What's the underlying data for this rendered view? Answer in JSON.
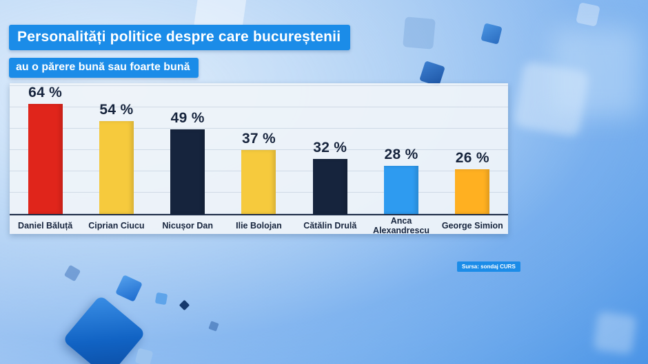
{
  "header": {
    "title_line1": "Personalități politice despre care bucureștenii",
    "title_line2": "au o părere bună sau foarte bună"
  },
  "source": {
    "label": "Sursa: sondaj CURS"
  },
  "colors": {
    "badge_blue": "#1b8ce8",
    "panel_bg": "#eef3f9",
    "text_dark": "#16243d"
  },
  "chart_data": {
    "type": "bar",
    "title": "Personalități politice despre care bucureștenii au o părere bună sau foarte bună",
    "categories": [
      "Daniel Băluță",
      "Ciprian Ciucu",
      "Nicușor Dan",
      "Ilie Bolojan",
      "Cătălin Drulă",
      "Anca Alexandrescu",
      "George Simion"
    ],
    "values": [
      64,
      54,
      49,
      37,
      32,
      28,
      26
    ],
    "value_suffix": " %",
    "bar_colors": [
      "#e0251b",
      "#f6ca3d",
      "#16243d",
      "#f6ca3d",
      "#16243d",
      "#2e9bf0",
      "#ffb021"
    ],
    "xlabel": "",
    "ylabel": "",
    "ylim": [
      0,
      70
    ],
    "grid": "faint horizontal lines",
    "legend": "none"
  }
}
